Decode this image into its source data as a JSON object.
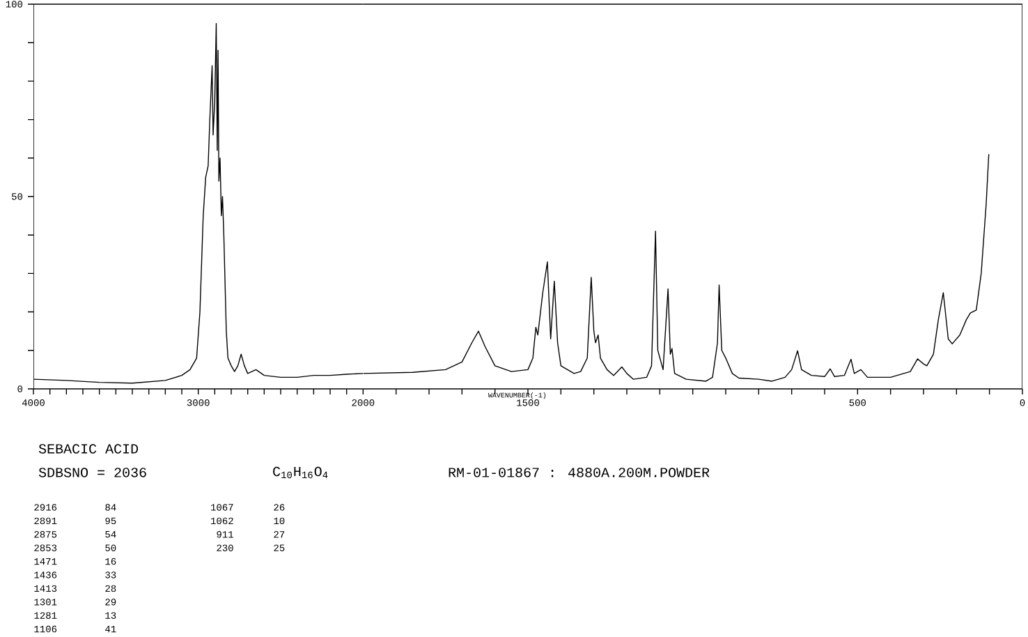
{
  "chart_data": [
    {
      "type": "line",
      "title": "SEBACIC ACID",
      "subtitle": "SDBSNO = 2036",
      "annotations": [
        "C$_{10}$H$_{16}$O$_{4}$",
        "RM-01-01867 : 4880A.200M.POWDER",
        "2916",
        "84",
        "2891",
        "95",
        "2875",
        "54",
        "2853",
        "50",
        "1471",
        "16",
        "1436",
        "33",
        "1413",
        "28",
        "1301",
        "29",
        "1281",
        "13",
        "1106",
        "41",
        "1067",
        "26",
        "1062",
        "10",
        "911",
        "27",
        "230",
        "25"
      ],
      "xlim": [
        4000,
        2000
      ],
      "xticks": [
        4000,
        {
          "value": 3900,
          "label": null
        },
        {
          "value": 3800,
          "label": null
        },
        {
          "value": 3700,
          "label": null
        },
        {
          "value": 3600,
          "label": null
        },
        {
          "value": 3500,
          "label": null
        },
        {
          "value": 3400,
          "label": null
        },
        {
          "value": 3300,
          "label": null
        },
        {
          "value": 3200,
          "label": null
        },
        {
          "value": 3100,
          "label": null
        },
        3000,
        {
          "value": 2900,
          "label": null
        },
        {
          "value": 2800,
          "label": null
        },
        {
          "value": 2700,
          "label": null
        },
        {
          "value": 2600,
          "label": null
        },
        {
          "value": 2500,
          "label": null
        },
        {
          "value": 2400,
          "label": null
        },
        {
          "value": 2300,
          "label": null
        },
        {
          "value": 2200,
          "label": null
        },
        {
          "value": 2100,
          "label": null
        },
        2000
      ],
      "ylim": [
        0,
        100
      ],
      "yticks": [
        0,
        {
          "value": 10,
          "label": null
        },
        {
          "value": 20,
          "label": null
        },
        {
          "value": 30,
          "label": null
        },
        {
          "value": 40,
          "label": null
        },
        50,
        {
          "value": 60,
          "label": null
        },
        {
          "value": 70,
          "label": null
        },
        {
          "value": 80,
          "label": null
        },
        {
          "value": 90,
          "label": null
        },
        100
      ],
      "series": [
        {
          "color": "#000000",
          "x": [
            4000,
            3800,
            3600,
            3400,
            3200,
            3100,
            3050,
            3010,
            2990,
            2970,
            2955,
            2940,
            2930,
            2916,
            2910,
            2900,
            2891,
            2885,
            2880,
            2875,
            2868,
            2860,
            2853,
            2845,
            2830,
            2820,
            2800,
            2780,
            2760,
            2740,
            2720,
            2700,
            2650,
            2600,
            2500,
            2400,
            2300,
            2200,
            2100,
            2000
          ],
          "values": [
            2.5,
            2.2,
            1.7,
            1.5,
            2.2,
            3.5,
            5,
            8,
            20,
            45,
            55,
            58,
            70,
            84,
            66,
            75,
            95,
            62,
            88,
            54,
            60,
            45,
            50,
            40,
            15,
            8,
            6,
            4.5,
            6,
            9,
            6,
            4,
            5,
            3.5,
            3,
            3,
            3.5,
            3.5,
            3.8,
            4
          ]
        }
      ]
    },
    {
      "type": "line",
      "xlabel": "WAVENUMBER(-1)",
      "tick_labels": "x",
      "xlim": [
        2000,
        0
      ],
      "xticks": [
        {
          "value": 1900,
          "label": null
        },
        {
          "value": 1800,
          "label": null
        },
        {
          "value": 1700,
          "label": null
        },
        {
          "value": 1600,
          "label": null
        },
        1500,
        {
          "value": 1400,
          "label": null
        },
        {
          "value": 1300,
          "label": null
        },
        {
          "value": 1200,
          "label": null
        },
        {
          "value": 1100,
          "label": null
        },
        {
          "value": 1000,
          "label": null
        },
        {
          "value": 900,
          "label": null
        },
        {
          "value": 800,
          "label": null
        },
        {
          "value": 700,
          "label": null
        },
        {
          "value": 600,
          "label": null
        },
        500,
        {
          "value": 400,
          "label": null
        },
        {
          "value": 300,
          "label": null
        },
        {
          "value": 200,
          "label": null
        },
        {
          "value": 100,
          "label": null
        },
        0
      ],
      "ylim": [
        0,
        100
      ],
      "series": [
        {
          "color": "#000000",
          "x": [
            2000,
            1850,
            1750,
            1700,
            1670,
            1650,
            1630,
            1600,
            1550,
            1500,
            1485,
            1476,
            1470,
            1455,
            1441,
            1431,
            1420,
            1410,
            1400,
            1380,
            1360,
            1340,
            1320,
            1308,
            1300,
            1295,
            1287,
            1280,
            1260,
            1240,
            1215,
            1200,
            1180,
            1140,
            1125,
            1113,
            1106,
            1090,
            1075,
            1068,
            1063,
            1055,
            1020,
            960,
            940,
            925,
            920,
            912,
            900,
            880,
            860,
            800,
            760,
            720,
            700,
            682,
            670,
            640,
            600,
            583,
            570,
            540,
            520,
            510,
            490,
            470,
            400,
            340,
            318,
            300,
            290,
            270,
            255,
            240,
            225,
            213,
            190,
            170,
            158,
            140,
            125,
            110,
            102
          ],
          "values": [
            4,
            4.3,
            5,
            7,
            12,
            15,
            11,
            6,
            4.5,
            5,
            8,
            16,
            14,
            25,
            33,
            13,
            28,
            12,
            6,
            5,
            4,
            4.5,
            8,
            29,
            15,
            12,
            14,
            8,
            5,
            3.5,
            5.7,
            4,
            2.5,
            3,
            6,
            41,
            10,
            5,
            26,
            9,
            10.5,
            4,
            2.5,
            2,
            3,
            12,
            27,
            10,
            8,
            4,
            2.8,
            2.5,
            2,
            3,
            5,
            9.9,
            5,
            3.5,
            3.2,
            5.2,
            3.2,
            3.5,
            7.7,
            4,
            5,
            3,
            3,
            4.5,
            7.8,
            6.5,
            6,
            9,
            18,
            25,
            13,
            11.7,
            14,
            18,
            19.7,
            20.5,
            30,
            48,
            61
          ]
        }
      ]
    }
  ]
}
